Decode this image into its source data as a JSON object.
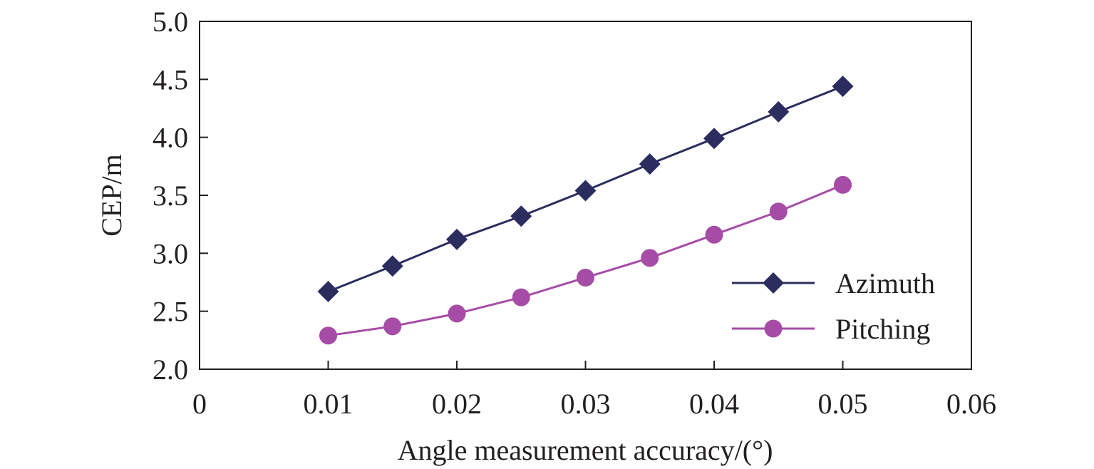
{
  "chart_data": {
    "type": "line",
    "title": "",
    "xlabel": "Angle measurement accuracy/(°)",
    "ylabel": "CEP/m",
    "xlim": [
      0,
      0.06
    ],
    "ylim": [
      2.0,
      5.0
    ],
    "x_ticks": [
      "0",
      "0.01",
      "0.02",
      "0.03",
      "0.04",
      "0.05",
      "0.06"
    ],
    "y_ticks": [
      "2.0",
      "2.5",
      "3.0",
      "3.5",
      "4.0",
      "4.5",
      "5.0"
    ],
    "grid": false,
    "legend_position": "bottom-right",
    "x": [
      0.01,
      0.015,
      0.02,
      0.025,
      0.03,
      0.035,
      0.04,
      0.045,
      0.05
    ],
    "series": [
      {
        "name": "Azimuth",
        "marker": "diamond",
        "color": "#2b2d5e",
        "values": [
          2.67,
          2.89,
          3.12,
          3.32,
          3.54,
          3.77,
          3.99,
          4.22,
          4.44
        ]
      },
      {
        "name": "Pitching",
        "marker": "circle",
        "color": "#a64ca6",
        "values": [
          2.29,
          2.37,
          2.48,
          2.62,
          2.79,
          2.96,
          3.16,
          3.36,
          3.59
        ]
      }
    ]
  }
}
